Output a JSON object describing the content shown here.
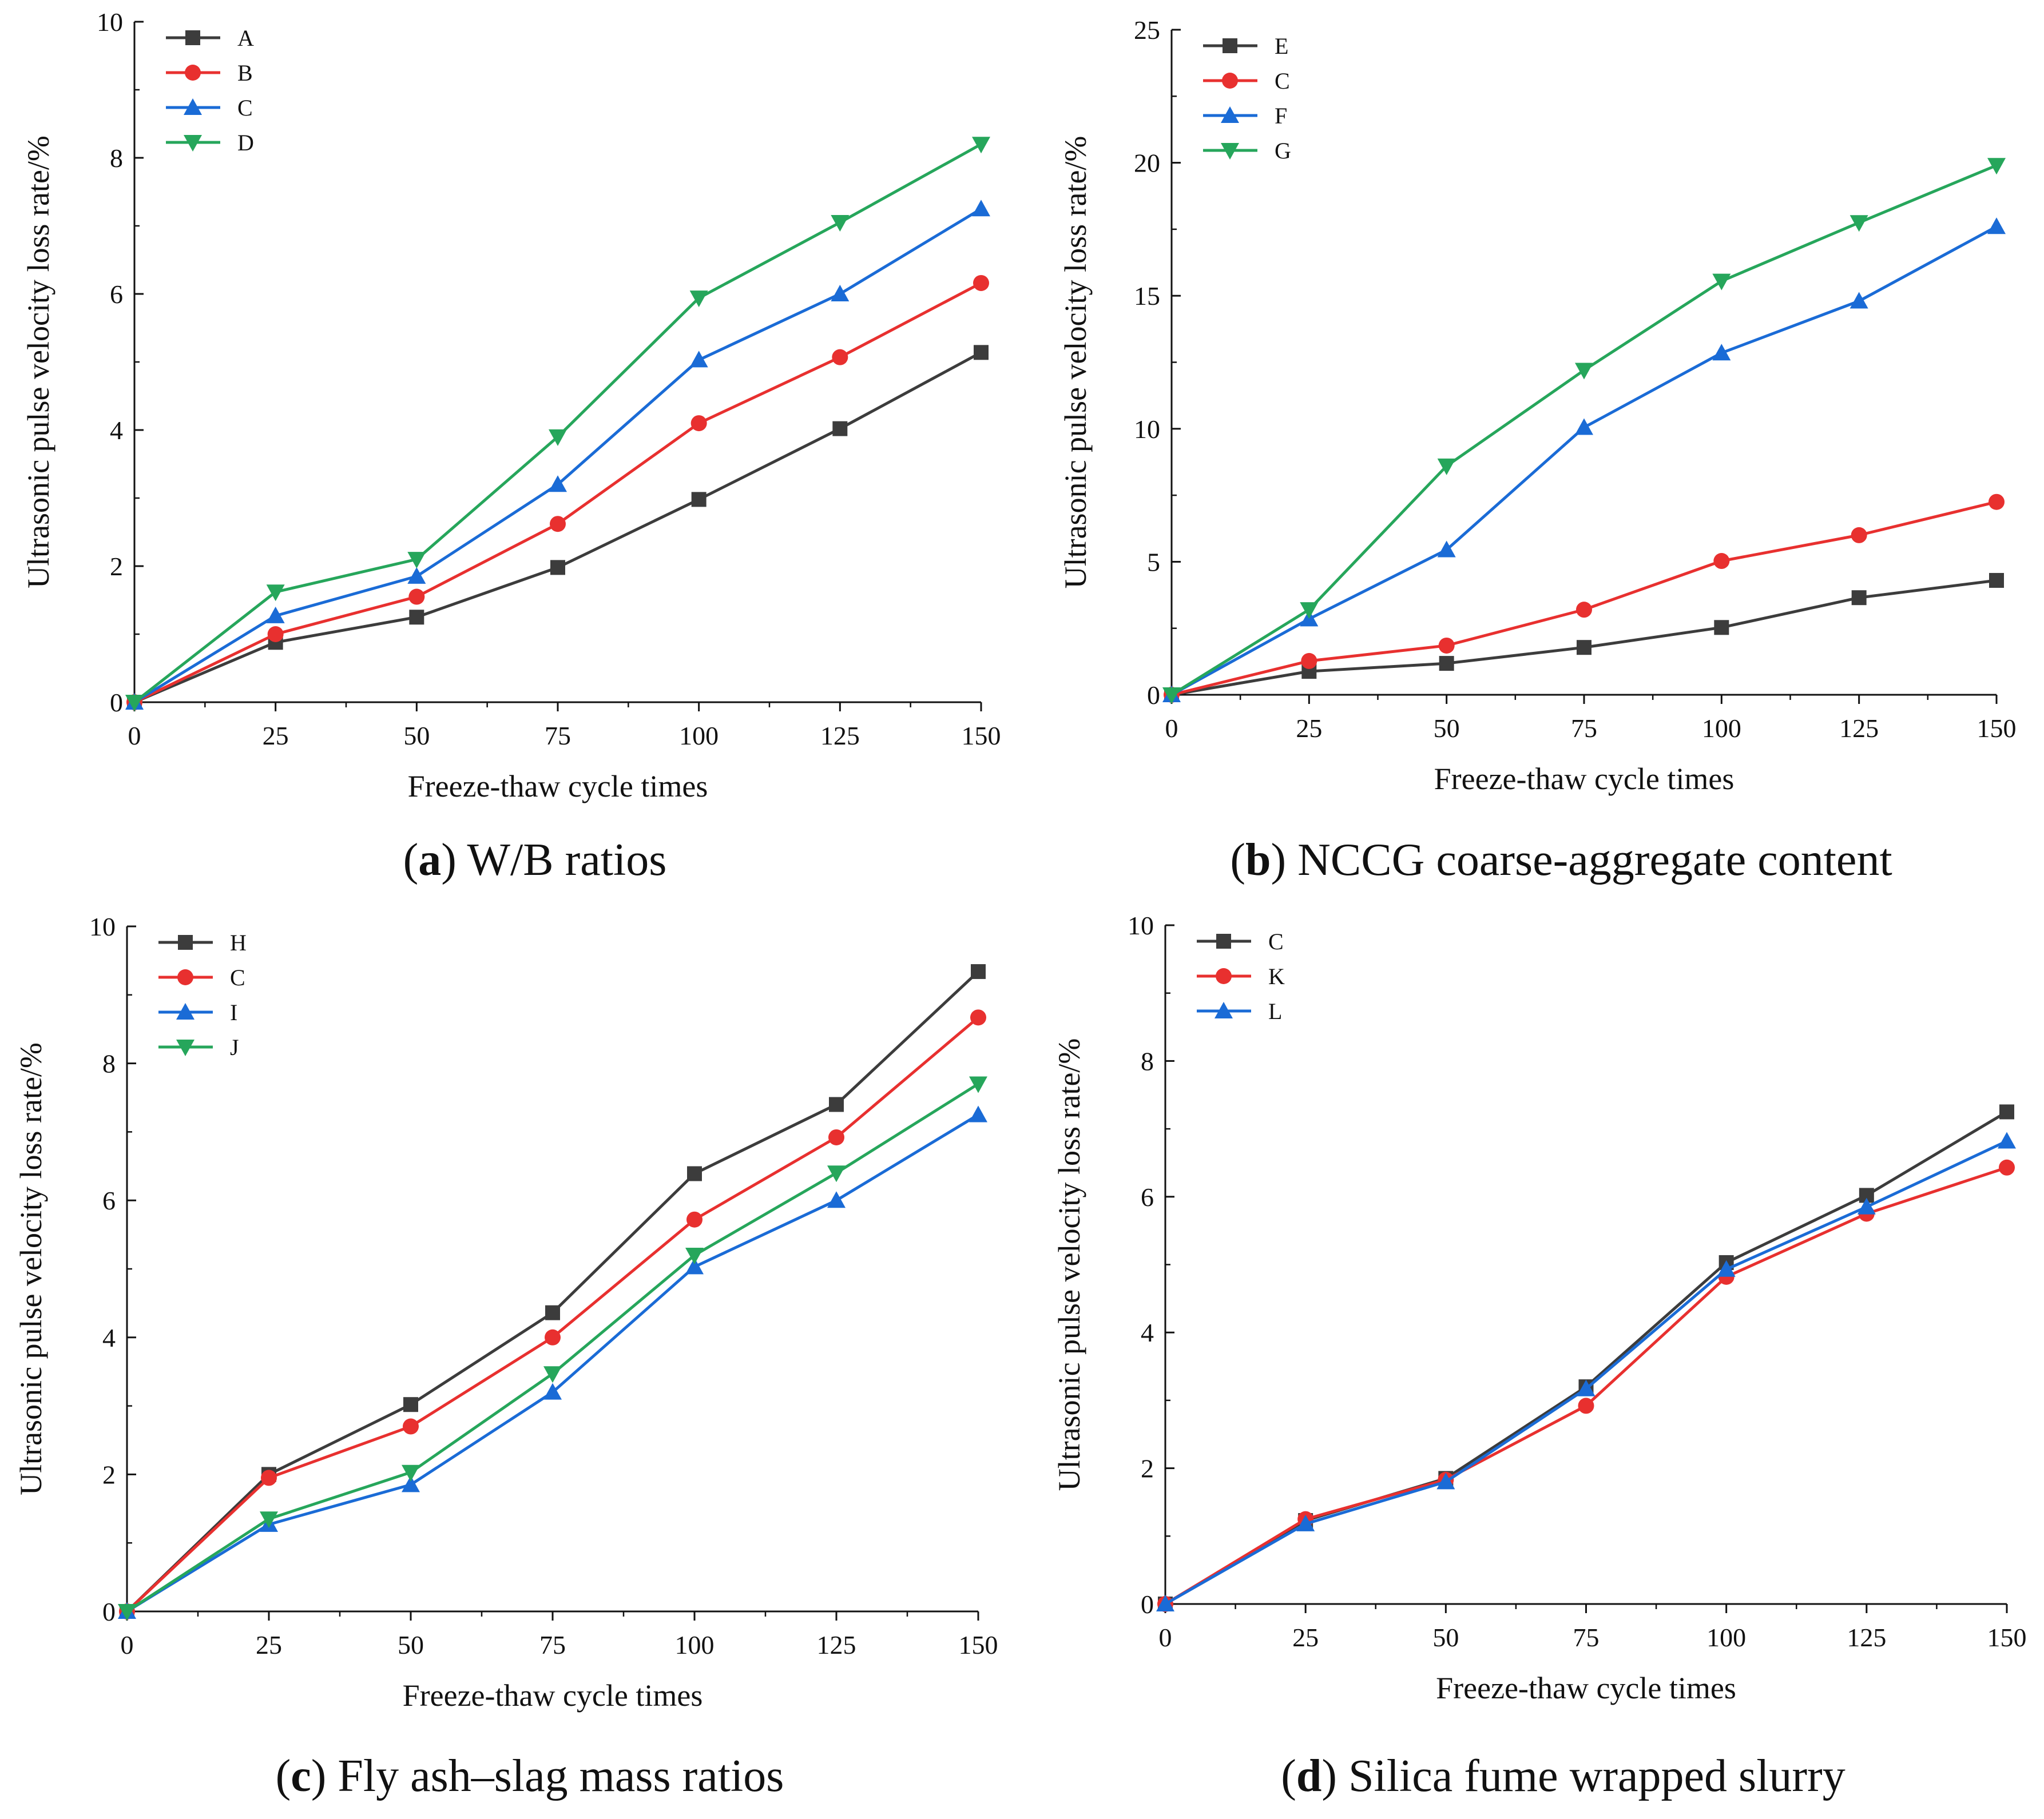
{
  "chart_data": [
    {
      "type": "line",
      "panel_letter": "a",
      "caption": "W/B ratios",
      "xlabel": "Freeze-thaw cycle times",
      "ylabel": "Ultrasonic pulse velocity  loss rate/%",
      "x": [
        0,
        25,
        50,
        75,
        100,
        125,
        150
      ],
      "xticks": [
        0,
        25,
        50,
        75,
        100,
        125,
        150
      ],
      "yticks": [
        0,
        2,
        4,
        6,
        8,
        10
      ],
      "xlim": [
        0,
        150
      ],
      "ylim": [
        0,
        10
      ],
      "legend_position": "top-left",
      "series": [
        {
          "name": "A",
          "color": "#3c3c3c",
          "marker": "square",
          "values": [
            0,
            0.88,
            1.25,
            1.98,
            2.98,
            4.02,
            5.14
          ]
        },
        {
          "name": "B",
          "color": "#e8302f",
          "marker": "circle",
          "values": [
            0,
            1.0,
            1.55,
            2.62,
            4.1,
            5.07,
            6.16
          ]
        },
        {
          "name": "C",
          "color": "#1a6bd6",
          "marker": "triangle-up",
          "values": [
            0,
            1.27,
            1.85,
            3.2,
            5.03,
            6.0,
            7.25
          ]
        },
        {
          "name": "D",
          "color": "#26a65b",
          "marker": "triangle-down",
          "values": [
            0,
            1.62,
            2.1,
            3.9,
            5.94,
            7.05,
            8.2
          ]
        }
      ]
    },
    {
      "type": "line",
      "panel_letter": "b",
      "caption": "NCCG coarse-aggregate content",
      "xlabel": "Freeze-thaw cycle times",
      "ylabel": "Ultrasonic pulse velocity  loss rate/%",
      "x": [
        0,
        25,
        50,
        75,
        100,
        125,
        150
      ],
      "xticks": [
        0,
        25,
        50,
        75,
        100,
        125,
        150
      ],
      "yticks": [
        0,
        5,
        10,
        15,
        20,
        25
      ],
      "xlim": [
        0,
        150
      ],
      "ylim": [
        0,
        25
      ],
      "legend_position": "top-left",
      "series": [
        {
          "name": "E",
          "color": "#3c3c3c",
          "marker": "square",
          "values": [
            0,
            0.88,
            1.18,
            1.78,
            2.53,
            3.65,
            4.3
          ]
        },
        {
          "name": "C",
          "color": "#e8302f",
          "marker": "circle",
          "values": [
            0,
            1.27,
            1.85,
            3.2,
            5.03,
            6.0,
            7.25
          ]
        },
        {
          "name": "F",
          "color": "#1a6bd6",
          "marker": "triangle-up",
          "values": [
            0,
            2.85,
            5.45,
            10.05,
            12.85,
            14.8,
            17.6
          ]
        },
        {
          "name": "G",
          "color": "#26a65b",
          "marker": "triangle-down",
          "values": [
            0,
            3.2,
            8.6,
            12.2,
            15.55,
            17.75,
            19.9
          ]
        }
      ]
    },
    {
      "type": "line",
      "panel_letter": "c",
      "caption": "Fly ash–slag mass ratios",
      "xlabel": "Freeze-thaw cycle times",
      "ylabel": "Ultrasonic pulse velocity  loss rate/%",
      "x": [
        0,
        25,
        50,
        75,
        100,
        125,
        150
      ],
      "xticks": [
        0,
        25,
        50,
        75,
        100,
        125,
        150
      ],
      "yticks": [
        0,
        2,
        4,
        6,
        8,
        10
      ],
      "xlim": [
        0,
        150
      ],
      "ylim": [
        0,
        10
      ],
      "legend_position": "top-left",
      "series": [
        {
          "name": "H",
          "color": "#3c3c3c",
          "marker": "square",
          "values": [
            0,
            2.0,
            3.02,
            4.36,
            6.39,
            7.4,
            9.34
          ]
        },
        {
          "name": "C",
          "color": "#e8302f",
          "marker": "circle",
          "values": [
            0,
            1.95,
            2.7,
            4.0,
            5.72,
            6.92,
            8.67
          ]
        },
        {
          "name": "I",
          "color": "#1a6bd6",
          "marker": "triangle-up",
          "values": [
            0,
            1.27,
            1.85,
            3.2,
            5.03,
            6.0,
            7.25
          ]
        },
        {
          "name": "J",
          "color": "#26a65b",
          "marker": "triangle-down",
          "values": [
            0,
            1.35,
            2.03,
            3.47,
            5.2,
            6.4,
            7.7
          ]
        }
      ]
    },
    {
      "type": "line",
      "panel_letter": "d",
      "caption": "Silica fume wrapped slurry",
      "xlabel": "Freeze-thaw cycle times",
      "ylabel": "Ultrasonic pulse velocity  loss rate/%",
      "x": [
        0,
        25,
        50,
        75,
        100,
        125,
        150
      ],
      "xticks": [
        0,
        25,
        50,
        75,
        100,
        125,
        150
      ],
      "yticks": [
        0,
        2,
        4,
        6,
        8,
        10
      ],
      "xlim": [
        0,
        150
      ],
      "ylim": [
        0,
        10
      ],
      "legend_position": "top-left",
      "series": [
        {
          "name": "C",
          "color": "#3c3c3c",
          "marker": "square",
          "values": [
            0,
            1.23,
            1.85,
            3.2,
            5.03,
            6.02,
            7.25
          ]
        },
        {
          "name": "K",
          "color": "#e8302f",
          "marker": "circle",
          "values": [
            0,
            1.25,
            1.83,
            2.92,
            4.82,
            5.75,
            6.43
          ]
        },
        {
          "name": "L",
          "color": "#1a6bd6",
          "marker": "triangle-up",
          "values": [
            0,
            1.18,
            1.8,
            3.17,
            4.93,
            5.85,
            6.82
          ]
        }
      ]
    }
  ]
}
